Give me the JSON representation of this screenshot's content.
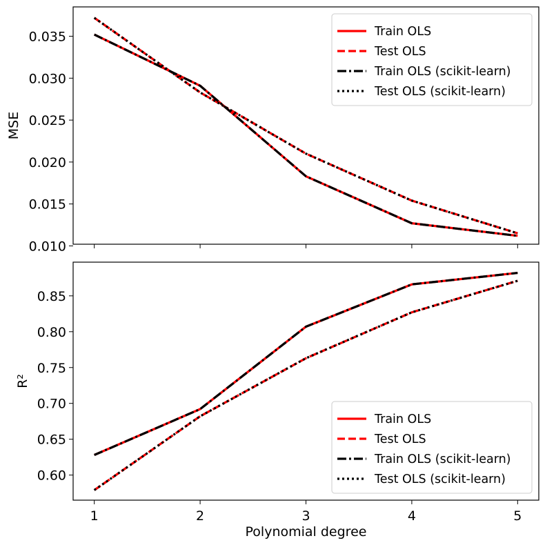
{
  "chart_data": [
    {
      "type": "line",
      "ylabel": "MSE",
      "xlabel": "",
      "x": [
        1,
        2,
        3,
        4,
        5
      ],
      "xticks": [
        "1",
        "2",
        "3",
        "4",
        "5"
      ],
      "show_xtick_labels": false,
      "xlim": [
        0.8,
        5.2
      ],
      "ylim": [
        0.0102,
        0.0385
      ],
      "yticks": [
        "0.010",
        "0.015",
        "0.020",
        "0.025",
        "0.030",
        "0.035"
      ],
      "ytick_values": [
        0.01,
        0.015,
        0.02,
        0.025,
        0.03,
        0.035
      ],
      "grid": false,
      "legend_position": "upper-right",
      "series": [
        {
          "name": "Train OLS",
          "values": [
            0.0352,
            0.0291,
            0.0183,
            0.0127,
            0.0112
          ],
          "color": "#ff0000",
          "style": "solid"
        },
        {
          "name": "Test OLS",
          "values": [
            0.0372,
            0.0283,
            0.021,
            0.0154,
            0.0115
          ],
          "color": "#ff0000",
          "style": "dashed"
        },
        {
          "name": "Train OLS (scikit-learn)",
          "values": [
            0.0352,
            0.0291,
            0.0183,
            0.0127,
            0.0112
          ],
          "color": "#000000",
          "style": "dashdot"
        },
        {
          "name": "Test OLS (scikit-learn)",
          "values": [
            0.0372,
            0.0283,
            0.021,
            0.0154,
            0.0115
          ],
          "color": "#000000",
          "style": "dotted"
        }
      ]
    },
    {
      "type": "line",
      "ylabel": "R²",
      "xlabel": "Polynomial degree",
      "x": [
        1,
        2,
        3,
        4,
        5
      ],
      "xticks": [
        "1",
        "2",
        "3",
        "4",
        "5"
      ],
      "show_xtick_labels": true,
      "xlim": [
        0.8,
        5.2
      ],
      "ylim": [
        0.565,
        0.897
      ],
      "yticks": [
        "0.60",
        "0.65",
        "0.70",
        "0.75",
        "0.80",
        "0.85"
      ],
      "ytick_values": [
        0.6,
        0.65,
        0.7,
        0.75,
        0.8,
        0.85
      ],
      "grid": false,
      "legend_position": "lower-right",
      "series": [
        {
          "name": "Train OLS",
          "values": [
            0.628,
            0.692,
            0.807,
            0.866,
            0.882
          ],
          "color": "#ff0000",
          "style": "solid"
        },
        {
          "name": "Test OLS",
          "values": [
            0.579,
            0.682,
            0.763,
            0.827,
            0.871
          ],
          "color": "#ff0000",
          "style": "dashed"
        },
        {
          "name": "Train OLS (scikit-learn)",
          "values": [
            0.628,
            0.692,
            0.807,
            0.866,
            0.882
          ],
          "color": "#000000",
          "style": "dashdot"
        },
        {
          "name": "Test OLS (scikit-learn)",
          "values": [
            0.579,
            0.682,
            0.763,
            0.827,
            0.871
          ],
          "color": "#000000",
          "style": "dotted"
        }
      ]
    }
  ]
}
